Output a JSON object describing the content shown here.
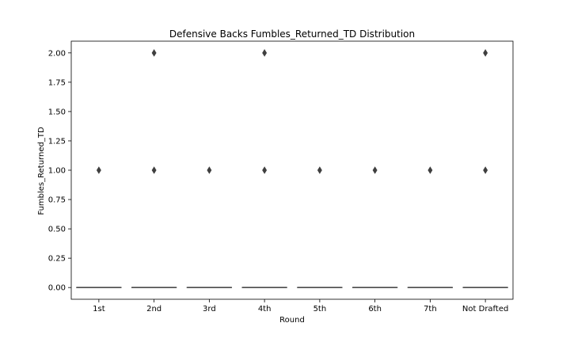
{
  "chart_data": {
    "type": "box",
    "title": "Defensive Backs Fumbles_Returned_TD Distribution",
    "xlabel": "Round",
    "ylabel": "Fumbles_Returned_TD",
    "categories": [
      "1st",
      "2nd",
      "3rd",
      "4th",
      "5th",
      "6th",
      "7th",
      "Not Drafted"
    ],
    "ylim": [
      -0.1,
      2.1
    ],
    "yticks": [
      0.0,
      0.25,
      0.5,
      0.75,
      1.0,
      1.25,
      1.5,
      1.75,
      2.0
    ],
    "ytick_labels": [
      "0.00",
      "0.25",
      "0.50",
      "0.75",
      "1.00",
      "1.25",
      "1.50",
      "1.75",
      "2.00"
    ],
    "boxes": [
      {
        "category": "1st",
        "q1": 0,
        "median": 0,
        "q3": 0,
        "whisker_low": 0,
        "whisker_high": 0,
        "outliers": [
          1
        ]
      },
      {
        "category": "2nd",
        "q1": 0,
        "median": 0,
        "q3": 0,
        "whisker_low": 0,
        "whisker_high": 0,
        "outliers": [
          1,
          2
        ]
      },
      {
        "category": "3rd",
        "q1": 0,
        "median": 0,
        "q3": 0,
        "whisker_low": 0,
        "whisker_high": 0,
        "outliers": [
          1
        ]
      },
      {
        "category": "4th",
        "q1": 0,
        "median": 0,
        "q3": 0,
        "whisker_low": 0,
        "whisker_high": 0,
        "outliers": [
          1,
          2
        ]
      },
      {
        "category": "5th",
        "q1": 0,
        "median": 0,
        "q3": 0,
        "whisker_low": 0,
        "whisker_high": 0,
        "outliers": [
          1
        ]
      },
      {
        "category": "6th",
        "q1": 0,
        "median": 0,
        "q3": 0,
        "whisker_low": 0,
        "whisker_high": 0,
        "outliers": [
          1
        ]
      },
      {
        "category": "7th",
        "q1": 0,
        "median": 0,
        "q3": 0,
        "whisker_low": 0,
        "whisker_high": 0,
        "outliers": [
          1
        ]
      },
      {
        "category": "Not Drafted",
        "q1": 0,
        "median": 0,
        "q3": 0,
        "whisker_low": 0,
        "whisker_high": 0,
        "outliers": [
          1,
          2
        ]
      }
    ],
    "grid": false,
    "colors": {
      "box": "#4d4d4d",
      "outlier": "#3f3f3f",
      "axes": "#000000"
    }
  }
}
